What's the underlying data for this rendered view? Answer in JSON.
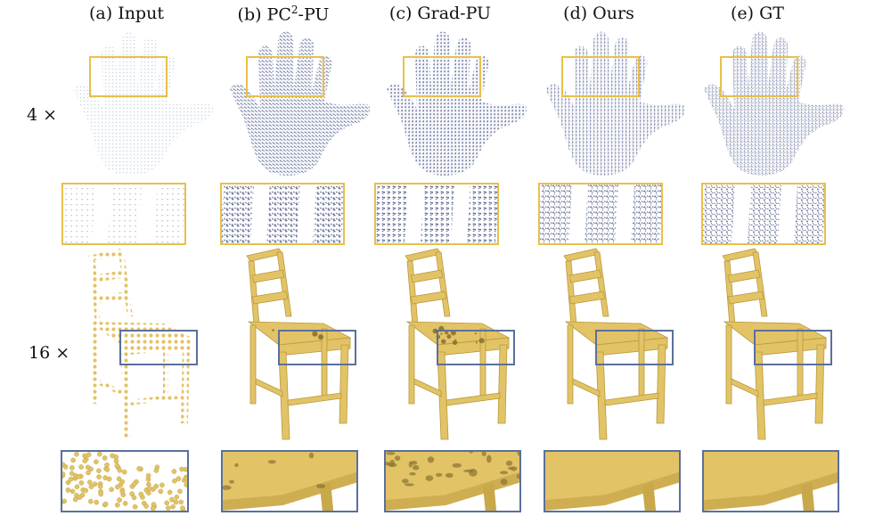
{
  "columns": [
    {
      "id": "a",
      "label": "(a) Input"
    },
    {
      "id": "b",
      "label_prefix": "(b) PC",
      "label_sup": "2",
      "label_suffix": "-PU"
    },
    {
      "id": "c",
      "label": "(c) Grad-PU"
    },
    {
      "id": "d",
      "label": "(d) Ours"
    },
    {
      "id": "e",
      "label": "(e) GT"
    }
  ],
  "rows": [
    {
      "id": "hand",
      "label": "4 ×"
    },
    {
      "id": "chair",
      "label": "16 ×"
    }
  ],
  "colors": {
    "hand_points": "#5a6690",
    "chair_points": "#e2c366",
    "hand_box": "#e8c04a",
    "chair_box": "#5b6f9e",
    "chair_shadow": "#b89a3e"
  }
}
